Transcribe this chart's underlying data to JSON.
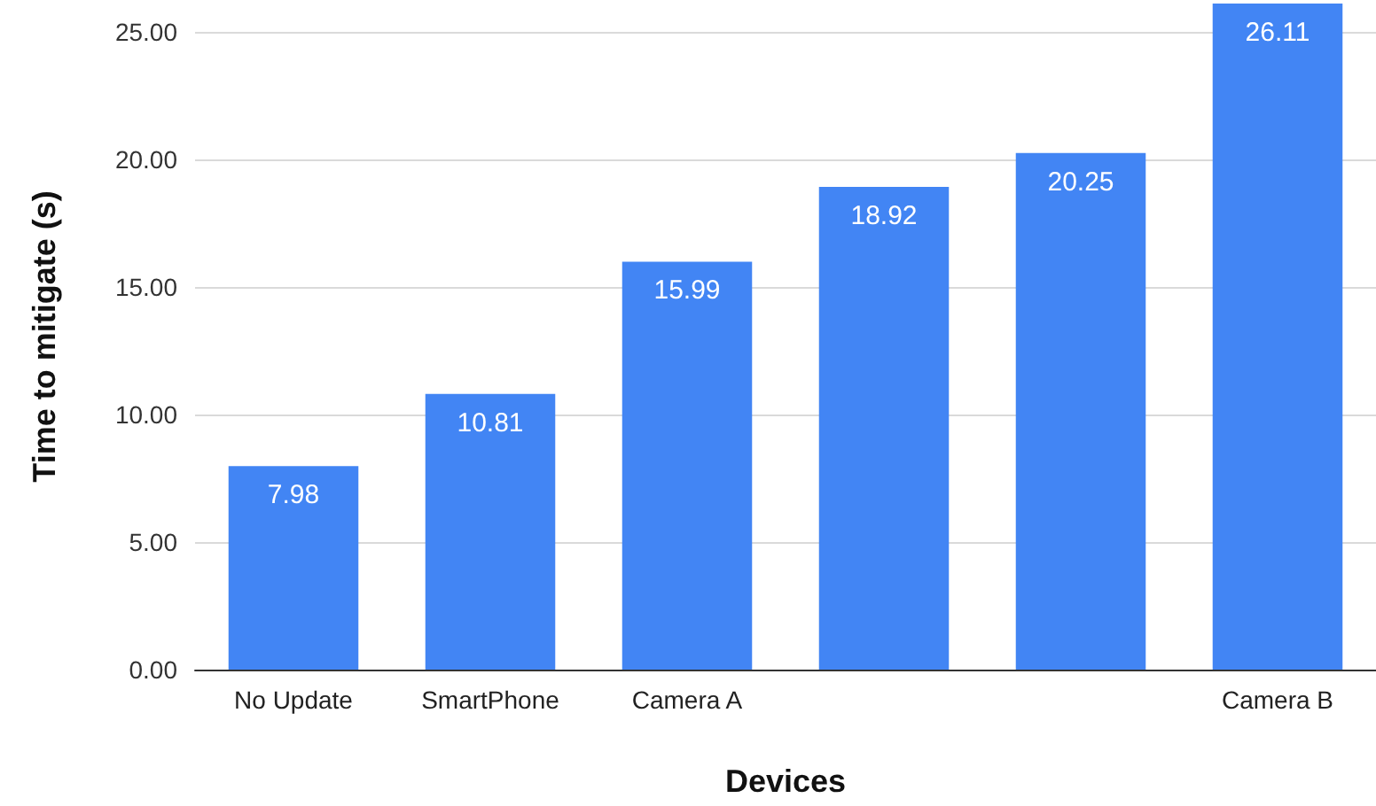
{
  "chart_data": {
    "type": "bar",
    "xlabel": "Devices",
    "ylabel": "Time to mitigate (s)",
    "categories": [
      "No Update",
      "SmartPhone",
      "Camera A",
      null,
      null,
      "Camera B"
    ],
    "values": [
      7.98,
      10.81,
      15.99,
      18.92,
      20.25,
      26.11
    ],
    "color": "#4285f4",
    "ylim": [
      0,
      26.11
    ],
    "yticks": [
      {
        "value": 0,
        "label": "0.00"
      },
      {
        "value": 5,
        "label": "5.00"
      },
      {
        "value": 10,
        "label": "10.00"
      },
      {
        "value": 15,
        "label": "15.00"
      },
      {
        "value": 20,
        "label": "20.00"
      },
      {
        "value": 25,
        "label": "25.00"
      }
    ],
    "grid": "y",
    "data_labels": true
  }
}
